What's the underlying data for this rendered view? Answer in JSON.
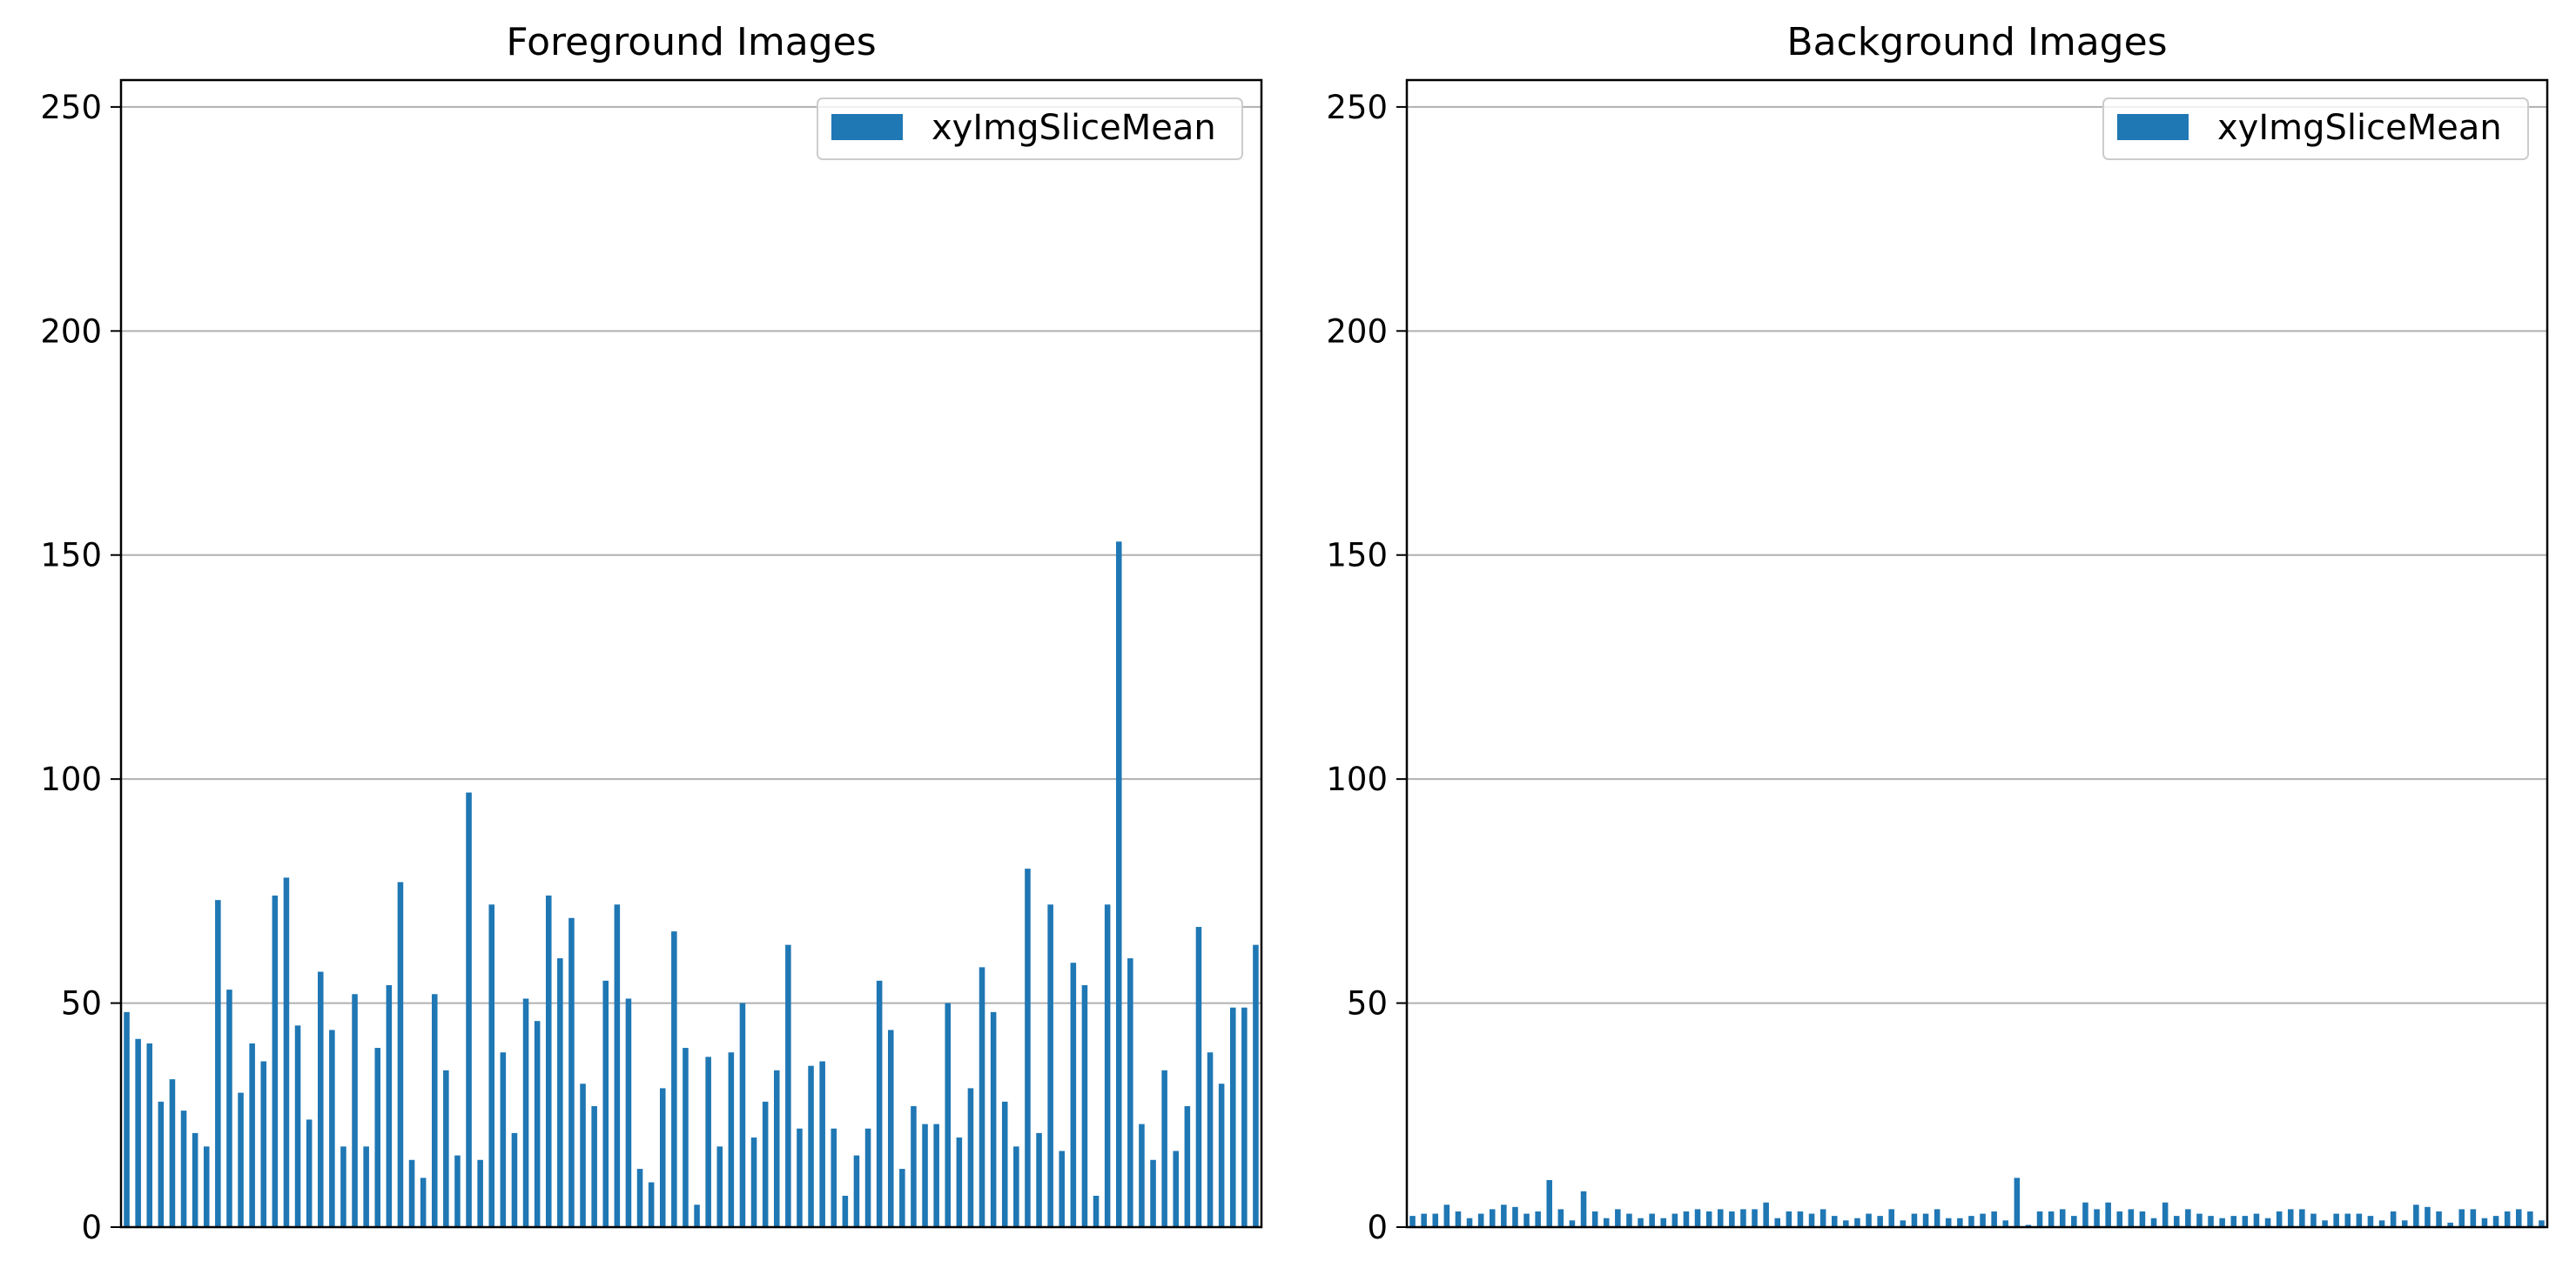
{
  "chart_data": [
    {
      "type": "bar",
      "title": "Foreground Images",
      "xlabel": "",
      "ylabel": "",
      "ylim": [
        0,
        256
      ],
      "yticks": [
        0,
        50,
        100,
        150,
        200,
        250
      ],
      "grid": "y",
      "legend_position": "top-right",
      "bar_color": "#1f77b4",
      "series": [
        {
          "name": "xyImgSliceMean",
          "values": [
            48,
            42,
            41,
            28,
            33,
            26,
            21,
            18,
            73,
            53,
            30,
            41,
            37,
            74,
            78,
            45,
            24,
            57,
            44,
            18,
            52,
            18,
            40,
            54,
            77,
            15,
            11,
            52,
            35,
            16,
            97,
            15,
            72,
            39,
            21,
            51,
            46,
            74,
            60,
            69,
            32,
            27,
            55,
            72,
            51,
            13,
            10,
            31,
            66,
            40,
            5,
            38,
            18,
            39,
            50,
            20,
            28,
            35,
            63,
            22,
            36,
            37,
            22,
            7,
            16,
            22,
            55,
            44,
            13,
            27,
            23,
            23,
            50,
            20,
            31,
            58,
            48,
            28,
            18,
            80,
            21,
            72,
            17,
            59,
            54,
            7,
            72,
            153,
            60,
            23,
            15,
            35,
            17,
            27,
            67,
            39,
            32,
            49,
            49,
            63
          ]
        }
      ]
    },
    {
      "type": "bar",
      "title": "Background Images",
      "xlabel": "",
      "ylabel": "",
      "ylim": [
        0,
        256
      ],
      "yticks": [
        0,
        50,
        100,
        150,
        200,
        250
      ],
      "grid": "y",
      "legend_position": "top-right",
      "bar_color": "#1f77b4",
      "series": [
        {
          "name": "xyImgSliceMean",
          "values": [
            2.5,
            3,
            3,
            5,
            3.5,
            2,
            3,
            4,
            5,
            4.5,
            3,
            3.5,
            10.5,
            4,
            1.5,
            8,
            3.5,
            2,
            4,
            3,
            2,
            3,
            2,
            3,
            3.5,
            4,
            3.5,
            4,
            3.5,
            4,
            4,
            5.5,
            2,
            3.5,
            3.5,
            3,
            4,
            2.5,
            1.5,
            2,
            3,
            2.5,
            4,
            1.5,
            3,
            3,
            4,
            2,
            2,
            2.5,
            3,
            3.5,
            1.5,
            11,
            0.5,
            3.5,
            3.5,
            4,
            2.5,
            5.5,
            4,
            5.5,
            3.5,
            4,
            3.5,
            2,
            5.5,
            2.5,
            4,
            3,
            2.5,
            2,
            2.5,
            2.5,
            3,
            2,
            3.5,
            4,
            4,
            3,
            1.5,
            3,
            3,
            3,
            2.5,
            1.5,
            3.5,
            1.5,
            5,
            4.5,
            3.5,
            1,
            4,
            4,
            2,
            2.5,
            3.5,
            4,
            3.5,
            1.5
          ]
        }
      ]
    }
  ]
}
